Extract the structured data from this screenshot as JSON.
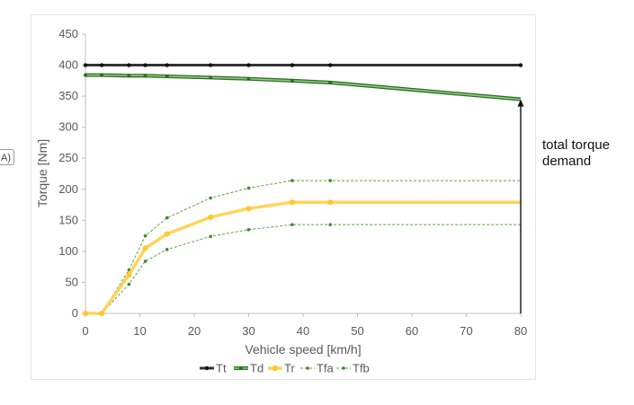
{
  "side_tag": "A)",
  "annotation": {
    "line1": "total torque",
    "line2": "demand"
  },
  "chart_data": {
    "type": "line",
    "xlabel": "Vehicle speed [km/h]",
    "ylabel": "Torque [Nm]",
    "xlim": [
      0,
      80
    ],
    "ylim": [
      0,
      450
    ],
    "xticks": [
      "0",
      "10",
      "20",
      "30",
      "40",
      "50",
      "60",
      "70",
      "80"
    ],
    "yticks": [
      "0",
      "50",
      "100",
      "150",
      "200",
      "250",
      "300",
      "350",
      "400",
      "450"
    ],
    "grid": false,
    "legend_position": "bottom",
    "colors": {
      "Tt": "#333333",
      "Td": "#4a9a3f",
      "Tr": "#ffd45a",
      "Tfa": "#5aa53f",
      "Tfb": "#5aa53f"
    },
    "series": [
      {
        "name": "Tt",
        "x": [
          0,
          3,
          8,
          11,
          15,
          23,
          30,
          38,
          45,
          80
        ],
        "y": [
          400,
          400,
          400,
          400,
          400,
          400,
          400,
          400,
          400,
          400
        ]
      },
      {
        "name": "Td",
        "x": [
          0,
          3,
          8,
          11,
          15,
          23,
          30,
          38,
          45,
          80
        ],
        "y": [
          384,
          384,
          383,
          383,
          382,
          380,
          378,
          375,
          372,
          345
        ]
      },
      {
        "name": "Tr",
        "x": [
          0,
          3,
          8,
          11,
          15,
          23,
          30,
          38,
          45,
          80
        ],
        "y": [
          0,
          0,
          62,
          105,
          128,
          155,
          169,
          179,
          179,
          179
        ]
      },
      {
        "name": "Tfa",
        "x": [
          0,
          3,
          8,
          11,
          15,
          23,
          30,
          38,
          45,
          80
        ],
        "y": [
          0,
          0,
          47,
          84,
          103,
          124,
          135,
          143,
          143,
          143
        ]
      },
      {
        "name": "Tfb",
        "x": [
          0,
          3,
          8,
          11,
          15,
          23,
          30,
          38,
          45,
          80
        ],
        "y": [
          0,
          0,
          70,
          125,
          154,
          186,
          202,
          214,
          214,
          214
        ]
      }
    ],
    "annotation_arrow": {
      "x": 80,
      "y_from": 0,
      "y_to": 345
    }
  }
}
